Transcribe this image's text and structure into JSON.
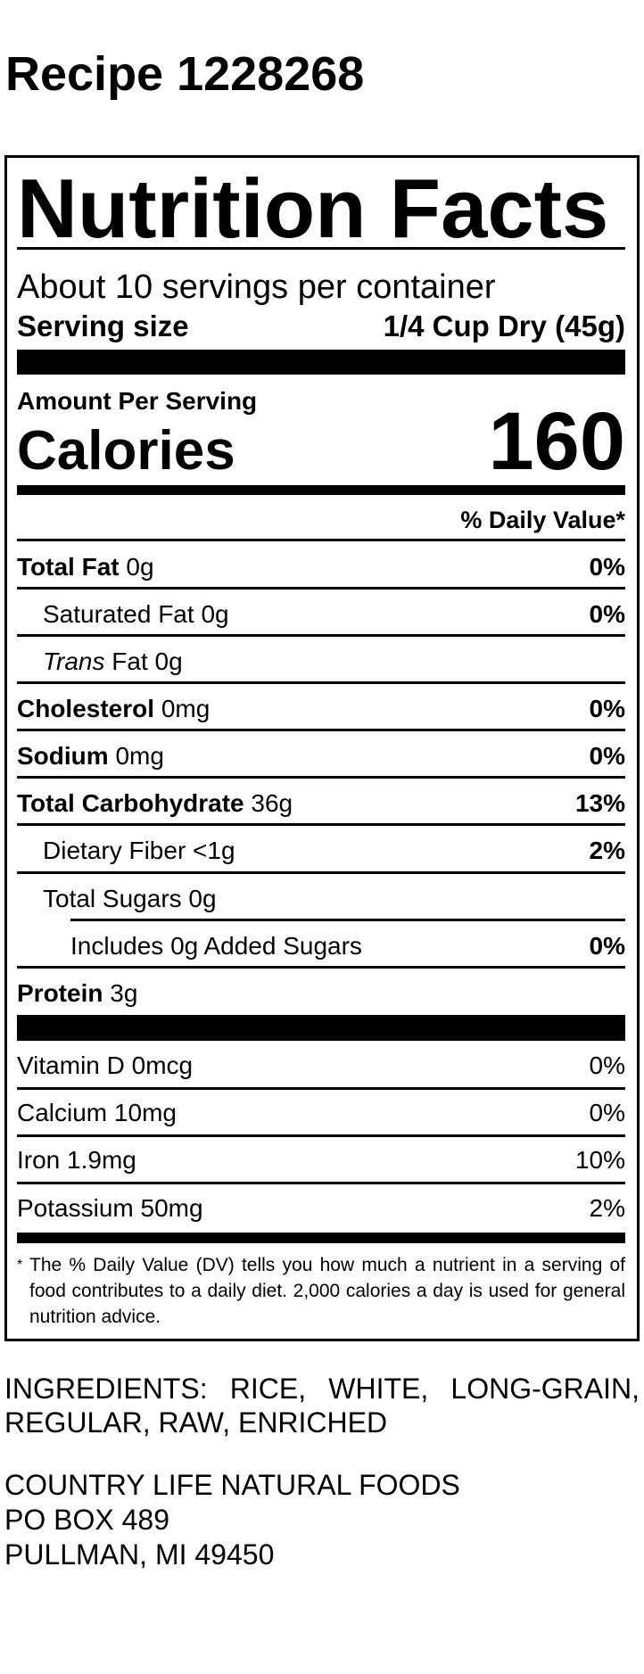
{
  "title": "Recipe 1228268",
  "label": {
    "heading": "Nutrition Facts",
    "servings_per_container": "About 10 servings per container",
    "serving_size_label": "Serving size",
    "serving_size_value": "1/4 Cup Dry (45g)",
    "amount_per_serving": "Amount Per Serving",
    "calories_label": "Calories",
    "calories_value": "160",
    "daily_value_header": "% Daily Value*",
    "nutrients": [
      {
        "name": "Total Fat",
        "amount": "0g",
        "dv": "0%"
      },
      {
        "name": "Saturated Fat",
        "amount": "0g",
        "dv": "0%"
      },
      {
        "name": "Trans",
        "name_suffix": "Fat",
        "amount": "0g",
        "dv": ""
      },
      {
        "name": "Cholesterol",
        "amount": "0mg",
        "dv": "0%"
      },
      {
        "name": "Sodium",
        "amount": "0mg",
        "dv": "0%"
      },
      {
        "name": "Total Carbohydrate",
        "amount": "36g",
        "dv": "13%"
      },
      {
        "name": "Dietary Fiber",
        "amount": "<1g",
        "dv": "2%"
      },
      {
        "name": "Total Sugars",
        "amount": "0g",
        "dv": ""
      },
      {
        "name": "Includes 0g Added Sugars",
        "amount": "",
        "dv": "0%"
      },
      {
        "name": "Protein",
        "amount": "3g",
        "dv": ""
      }
    ],
    "vitamins": [
      {
        "name": "Vitamin D",
        "amount": "0mcg",
        "dv": "0%"
      },
      {
        "name": "Calcium",
        "amount": "10mg",
        "dv": "0%"
      },
      {
        "name": "Iron",
        "amount": "1.9mg",
        "dv": "10%"
      },
      {
        "name": "Potassium",
        "amount": "50mg",
        "dv": "2%"
      }
    ],
    "footnote_asterisk": "*",
    "footnote": "The % Daily Value (DV) tells you how much a nutrient in a serving of food contributes to a daily diet. 2,000 calories a day is used for general nutrition advice."
  },
  "ingredients": "INGREDIENTS:  RICE,  WHITE,  LONG-GRAIN, REGULAR, RAW, ENRICHED",
  "address": {
    "line1": "COUNTRY LIFE NATURAL FOODS",
    "line2": "PO BOX 489",
    "line3": "PULLMAN, MI 49450"
  }
}
